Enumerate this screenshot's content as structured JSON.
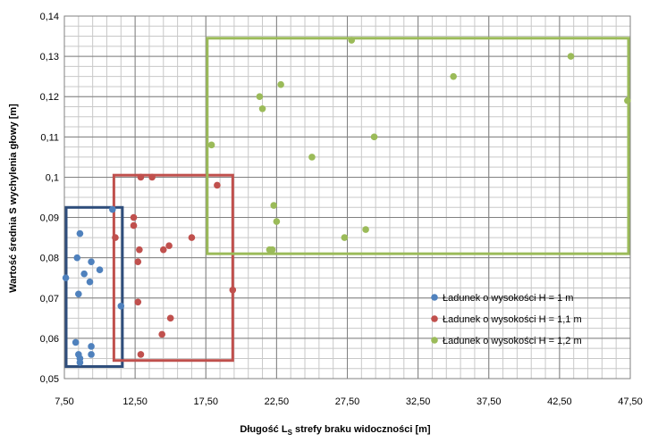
{
  "chart_data": {
    "type": "scatter",
    "xlabel": "Długość L",
    "xlabel_sub": "S",
    "xlabel_rest": " strefy  braku widoczności  [m]",
    "ylabel": "Wartość średnia S wychylenia  głowy [m]",
    "xlim": [
      7.5,
      47.5
    ],
    "ylim": [
      0.05,
      0.14
    ],
    "x_ticks": [
      "7,50",
      "12,50",
      "17,50",
      "22,50",
      "27,50",
      "32,50",
      "37,50",
      "42,50",
      "47,50"
    ],
    "y_ticks": [
      "0,05",
      "0,06",
      "0,07",
      "0,08",
      "0,09",
      "0,1",
      "0,11",
      "0,12",
      "0,13",
      "0,14"
    ],
    "grid": true,
    "legend_position": "right",
    "series": [
      {
        "name": "Ładunek o wysokości  H = 1 m",
        "color": "#4f81bd",
        "box_color": "#2e4d7b",
        "box": [
          7.5,
          11.6,
          0.053,
          0.0925
        ],
        "points": [
          [
            7.6,
            0.075
          ],
          [
            8.3,
            0.059
          ],
          [
            8.4,
            0.08
          ],
          [
            8.5,
            0.071
          ],
          [
            8.6,
            0.086
          ],
          [
            8.5,
            0.056
          ],
          [
            8.6,
            0.055
          ],
          [
            8.6,
            0.054
          ],
          [
            8.9,
            0.076
          ],
          [
            9.3,
            0.074
          ],
          [
            9.4,
            0.079
          ],
          [
            9.4,
            0.058
          ],
          [
            9.4,
            0.056
          ],
          [
            10.0,
            0.077
          ],
          [
            10.9,
            0.092
          ],
          [
            11.5,
            0.068
          ]
        ]
      },
      {
        "name": "Ładunek o wysokości  H = 1,1 m",
        "color": "#c0504d",
        "box_color": "#c0504d",
        "box": [
          11.0,
          19.4,
          0.0545,
          0.1005
        ],
        "points": [
          [
            11.1,
            0.085
          ],
          [
            12.4,
            0.09
          ],
          [
            12.4,
            0.088
          ],
          [
            12.7,
            0.069
          ],
          [
            12.7,
            0.079
          ],
          [
            12.8,
            0.082
          ],
          [
            12.9,
            0.1
          ],
          [
            12.9,
            0.056
          ],
          [
            13.7,
            0.1
          ],
          [
            14.4,
            0.061
          ],
          [
            14.5,
            0.082
          ],
          [
            14.9,
            0.083
          ],
          [
            15.0,
            0.065
          ],
          [
            16.5,
            0.085
          ],
          [
            18.3,
            0.098
          ],
          [
            19.4,
            0.072
          ]
        ]
      },
      {
        "name": "Ładunek o wysokości  H = 1,2 m",
        "color": "#9bbb59",
        "box_color": "#9bbb59",
        "box": [
          17.6,
          47.5,
          0.081,
          0.1345
        ],
        "points": [
          [
            17.9,
            0.108
          ],
          [
            21.3,
            0.12
          ],
          [
            21.5,
            0.117
          ],
          [
            22.0,
            0.082
          ],
          [
            22.2,
            0.082
          ],
          [
            22.3,
            0.093
          ],
          [
            22.5,
            0.089
          ],
          [
            22.8,
            0.123
          ],
          [
            25.0,
            0.105
          ],
          [
            27.3,
            0.085
          ],
          [
            27.8,
            0.134
          ],
          [
            28.8,
            0.087
          ],
          [
            29.4,
            0.11
          ],
          [
            35.0,
            0.125
          ],
          [
            43.3,
            0.13
          ],
          [
            47.3,
            0.119
          ]
        ]
      }
    ]
  }
}
